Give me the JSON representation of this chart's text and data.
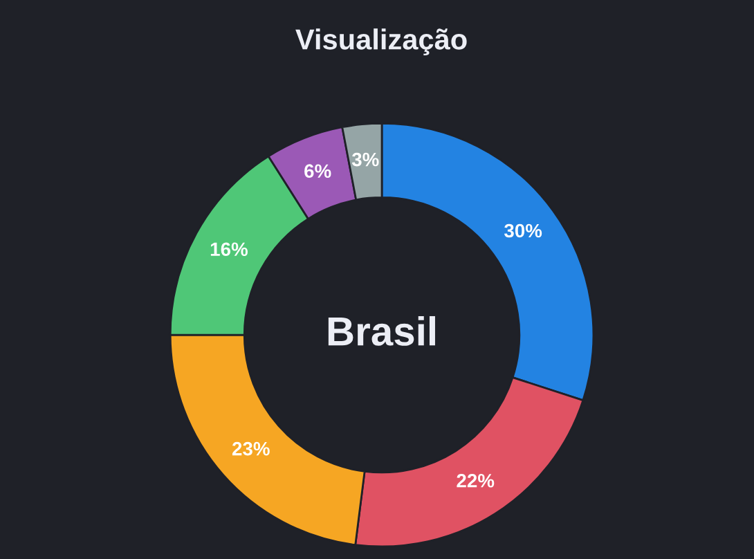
{
  "chart_data": {
    "type": "donut",
    "title": "Visualização",
    "categories": [
      null,
      null,
      null,
      null,
      null,
      null
    ],
    "values": [
      30,
      22,
      23,
      16,
      6,
      3
    ],
    "colors": [
      "#2383e2",
      "#e05263",
      "#f6a623",
      "#4fc777",
      "#9b59b6",
      "#95a5a6"
    ],
    "value_labels": [
      "30%",
      "22%",
      "23%",
      "16%",
      "6%",
      "3%"
    ],
    "annotations": [
      "Brasil"
    ],
    "legend": false
  }
}
